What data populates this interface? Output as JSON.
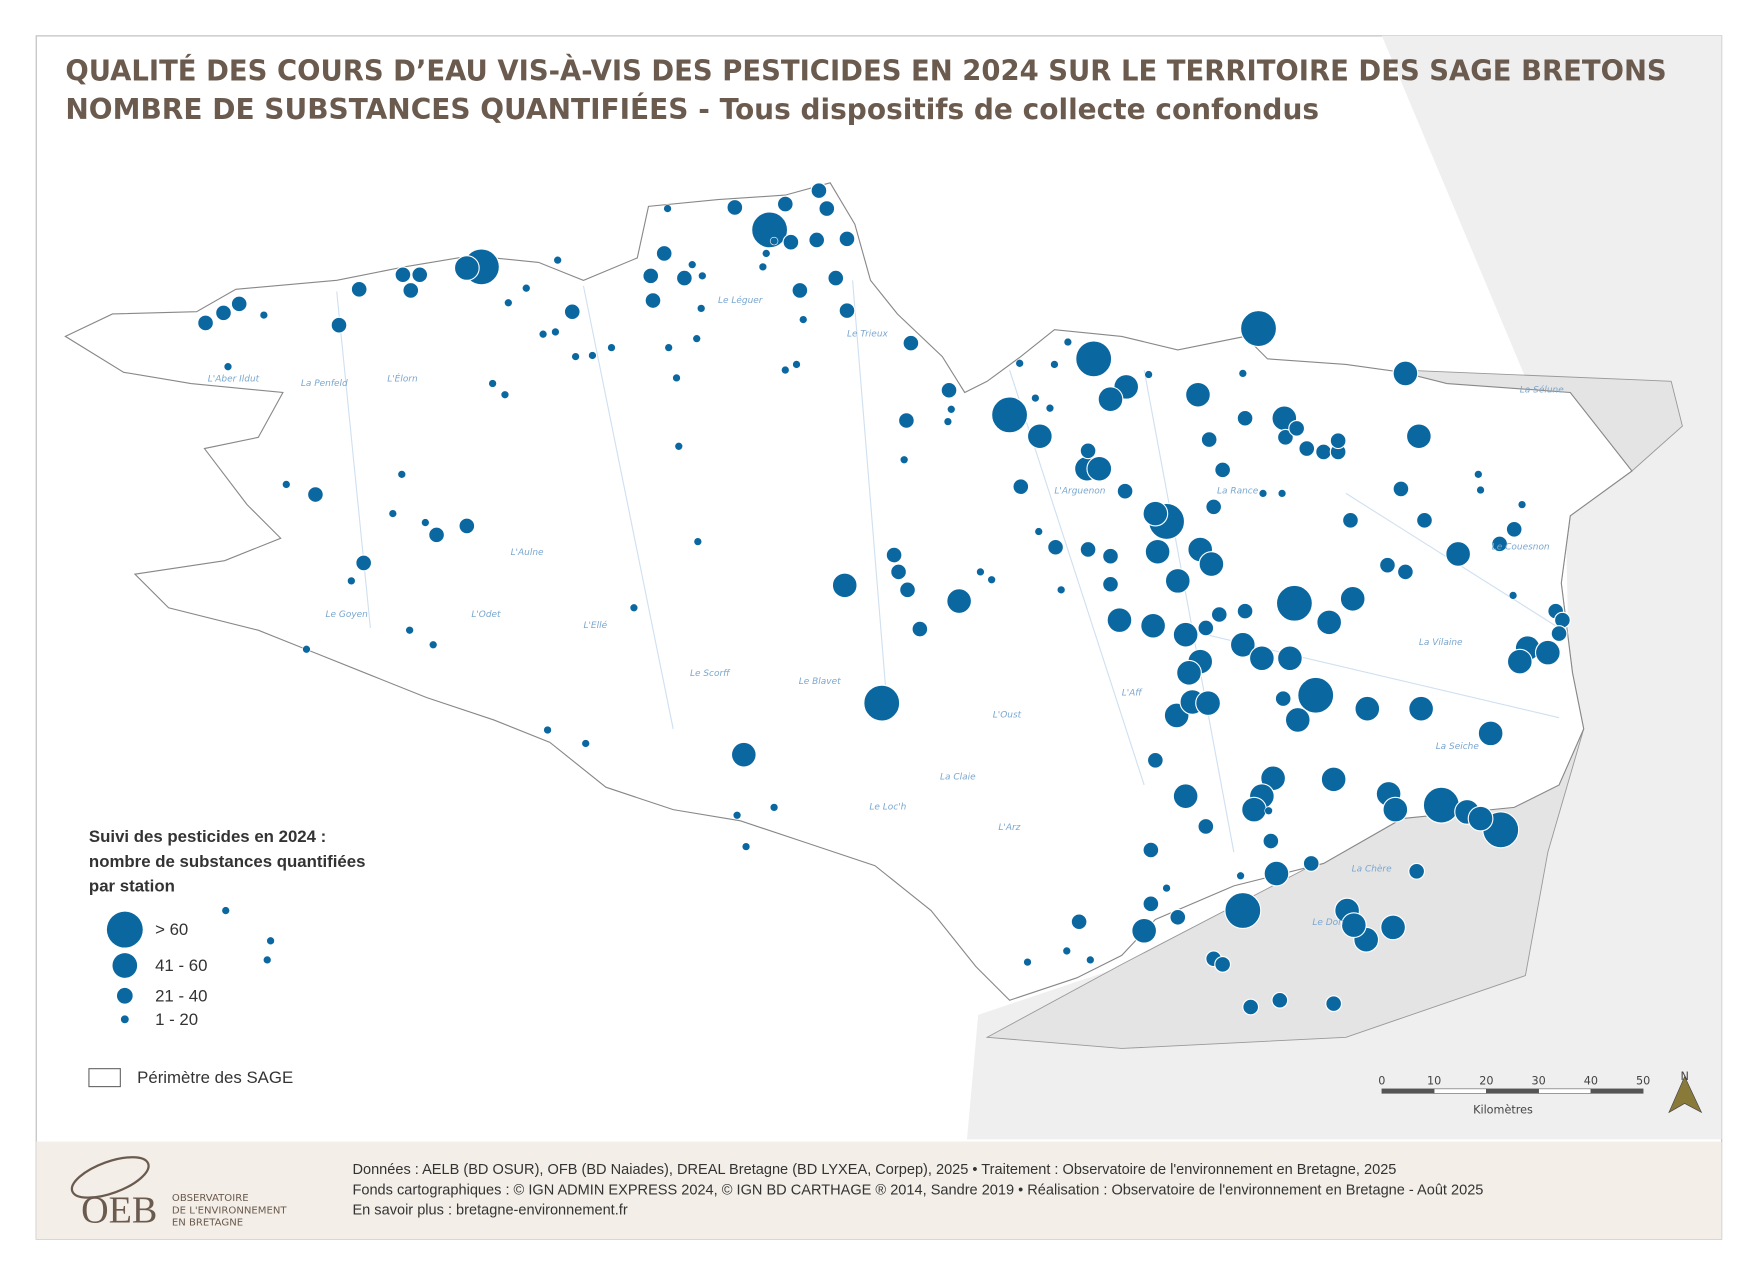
{
  "title": "QUALITÉ DES COURS D’EAU VIS-À-VIS DES PESTICIDES EN 2024 SUR LE TERRITOIRE DES SAGE BRETONS",
  "subtitle": {
    "bold": "NOMBRE DE SUBSTANCES QUANTIFIÉES",
    "rest": " - Tous dispositifs de collecte confondus"
  },
  "legend": {
    "title": [
      "Suivi des pesticides en 2024 :",
      "nombre de substances quantifiées",
      "par station"
    ],
    "classes": [
      "> 60",
      "41 - 60",
      "21 - 40",
      "1 - 20"
    ],
    "perimeter": "Périmètre des SAGE"
  },
  "scale": {
    "ticks": [
      0,
      10,
      20,
      30,
      40,
      50
    ],
    "unit": "Kilomètres"
  },
  "north": "N",
  "rivers": [
    "L'Élorn",
    "L'Aulne",
    "L'Odet",
    "Le Goyen",
    "Le Scorff",
    "Le Blavet",
    "L'Oust",
    "La Claie",
    "L'Arz",
    "La Vilaine",
    "La Seiche",
    "La Rance",
    "Le Couesnon",
    "L'Arguenon",
    "Le Trieux",
    "Le Léguer",
    "L'Aff",
    "Le Don",
    "La Chère",
    "La Sélune",
    "L'Ellé",
    "Le Loc'h",
    "La Penfeld",
    "L'Aber Ildut"
  ],
  "credits": [
    "Données : AELB (BD OSUR), OFB (BD Naiades), DREAL Bretagne (BD LYXEA, Corpep), 2025 • Traitement : Observatoire de l'environnement en Bretagne, 2025",
    "Fonds cartographiques : © IGN ADMIN EXPRESS 2024, © IGN BD CARTHAGE ® 2014, Sandre 2019 • Réalisation : Observatoire de l'environnement en Bretagne - Août 2025",
    "En savoir plus : bretagne-environnement.fr"
  ],
  "logo": {
    "acronym": "OEB",
    "lines": [
      "OBSERVATOIRE",
      "DE L'ENVIRONNEMENT",
      "EN BRETAGNE"
    ]
  }
}
